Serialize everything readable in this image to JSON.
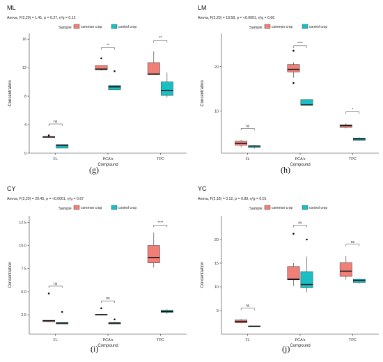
{
  "page": {
    "legend_title": "Sample",
    "legend_items": [
      "common crop",
      "control crop"
    ],
    "colors": {
      "common": "#f07f78",
      "control": "#19bfc2",
      "bracket": "#333333"
    }
  },
  "chart_data": [
    {
      "type": "boxplot",
      "panel_label": "(g)",
      "title": "ML",
      "subtitle": "Anova, F(2,20) = 1.41, p = 0.27, η²g = 0.12",
      "xlabel": "Compound",
      "ylabel": "Concentration",
      "categories": [
        "FL",
        "PCA's",
        "TPC"
      ],
      "ylim": [
        0,
        16.8
      ],
      "yticks": [
        0,
        4,
        8,
        12,
        16
      ],
      "ytick_labels": [
        "0",
        "4",
        "8",
        "12",
        "16"
      ],
      "series": [
        {
          "name": "common crop",
          "boxes": [
            {
              "min": 2.3,
              "q1": 2.3,
              "median": 2.3,
              "q3": 2.3,
              "max": 2.3,
              "outliers": [
                2.5
              ]
            },
            {
              "min": 11.6,
              "q1": 11.7,
              "median": 11.8,
              "q3": 12.3,
              "max": 12.3,
              "outliers": [
                13.3
              ]
            },
            {
              "min": 11.0,
              "q1": 11.0,
              "median": 11.1,
              "q3": 12.7,
              "max": 14.3,
              "outliers": []
            }
          ]
        },
        {
          "name": "control crop",
          "boxes": [
            {
              "min": 0.7,
              "q1": 0.7,
              "median": 1.1,
              "q3": 1.2,
              "max": 1.2,
              "outliers": []
            },
            {
              "min": 8.9,
              "q1": 8.9,
              "median": 9.3,
              "q3": 9.5,
              "max": 9.5,
              "outliers": [
                11.5
              ]
            },
            {
              "min": 7.8,
              "q1": 8.1,
              "median": 8.8,
              "q3": 10.0,
              "max": 11.3,
              "outliers": []
            }
          ]
        }
      ],
      "annotations": [
        {
          "category": "FL",
          "label": "ns",
          "y": 4.1
        },
        {
          "category": "PCA's",
          "label": "**",
          "y": 14.8
        },
        {
          "category": "TPC",
          "label": "**",
          "y": 15.8
        }
      ]
    },
    {
      "type": "boxplot",
      "panel_label": "(h)",
      "title": "LM",
      "subtitle": "Anova, F(2,20) = 19.58, p = <0.0001, η²g = 0.66",
      "xlabel": "Compound",
      "ylabel": "Concentration",
      "categories": [
        "FL",
        "PCA's",
        "TPC"
      ],
      "ylim": [
        0.5,
        27.5
      ],
      "yticks": [
        10,
        20
      ],
      "ytick_labels": [
        "10",
        "20"
      ],
      "series": [
        {
          "name": "common crop",
          "boxes": [
            {
              "min": 1.8,
              "q1": 2.3,
              "median": 2.7,
              "q3": 3.2,
              "max": 3.5,
              "outliers": []
            },
            {
              "min": 17.5,
              "q1": 18.8,
              "median": 19.4,
              "q3": 20.5,
              "max": 21.0,
              "outliers": [
                23.6,
                16.3
              ]
            },
            {
              "min": 6.1,
              "q1": 6.3,
              "median": 6.7,
              "q3": 6.9,
              "max": 7.2,
              "outliers": []
            }
          ]
        },
        {
          "name": "control crop",
          "boxes": [
            {
              "min": 1.5,
              "q1": 1.8,
              "median": 2.1,
              "q3": 2.2,
              "max": 2.3,
              "outliers": []
            },
            {
              "min": 11.3,
              "q1": 11.3,
              "median": 11.4,
              "q3": 12.6,
              "max": 12.6,
              "outliers": []
            },
            {
              "min": 3.3,
              "q1": 3.4,
              "median": 3.7,
              "q3": 3.9,
              "max": 4.1,
              "outliers": []
            }
          ]
        }
      ],
      "annotations": [
        {
          "category": "FL",
          "label": "ns",
          "y": 6.1
        },
        {
          "category": "PCA's",
          "label": "****",
          "y": 24.7
        },
        {
          "category": "TPC",
          "label": "*",
          "y": 9.8
        }
      ]
    },
    {
      "type": "boxplot",
      "panel_label": "(i)",
      "title": "CY",
      "subtitle": "Anova, F(2,20) = 20.45, p = <0.0001, η²g = 0.67",
      "xlabel": "Compound",
      "ylabel": "Concentration",
      "categories": [
        "FL",
        "PCA's",
        "TPC"
      ],
      "ylim": [
        0.4,
        13.2
      ],
      "yticks": [
        2.5,
        5.0,
        7.5,
        10.0,
        12.5
      ],
      "ytick_labels": [
        "2.5",
        "5.0",
        "7.5",
        "10.0",
        "12.5"
      ],
      "series": [
        {
          "name": "common crop",
          "boxes": [
            {
              "min": 1.7,
              "q1": 1.75,
              "median": 1.85,
              "q3": 1.9,
              "max": 1.9,
              "outliers": [
                4.8
              ]
            },
            {
              "min": 2.5,
              "q1": 2.5,
              "median": 2.5,
              "q3": 2.55,
              "max": 2.6,
              "outliers": [
                3.2
              ]
            },
            {
              "min": 7.6,
              "q1": 8.1,
              "median": 8.7,
              "q3": 10.0,
              "max": 11.4,
              "outliers": []
            }
          ]
        },
        {
          "name": "control crop",
          "boxes": [
            {
              "min": 1.5,
              "q1": 1.5,
              "median": 1.6,
              "q3": 1.65,
              "max": 1.7,
              "outliers": [
                2.8
              ]
            },
            {
              "min": 1.5,
              "q1": 1.5,
              "median": 1.6,
              "q3": 1.65,
              "max": 1.7,
              "outliers": [
                2.0
              ]
            },
            {
              "min": 2.6,
              "q1": 2.75,
              "median": 2.85,
              "q3": 3.0,
              "max": 3.1,
              "outliers": []
            }
          ]
        }
      ],
      "annotations": [
        {
          "category": "FL",
          "label": "ns",
          "y": 5.6
        },
        {
          "category": "PCA's",
          "label": "ns",
          "y": 4.0
        },
        {
          "category": "TPC",
          "label": "****",
          "y": 12.2
        }
      ]
    },
    {
      "type": "boxplot",
      "panel_label": "(j)",
      "title": "YC",
      "subtitle": "Anova, F(2,18) = 0.12, p = 0.89, η²g = 0.01",
      "xlabel": "Compound",
      "ylabel": "Concentration",
      "categories": [
        "FL",
        "PCA's",
        "TPC"
      ],
      "ylim": [
        0,
        25
      ],
      "yticks": [
        5,
        10,
        15,
        20
      ],
      "ytick_labels": [
        "5",
        "10",
        "15",
        "20"
      ],
      "series": [
        {
          "name": "common crop",
          "boxes": [
            {
              "min": 2.3,
              "q1": 2.4,
              "median": 2.7,
              "q3": 3.0,
              "max": 3.2,
              "outliers": []
            },
            {
              "min": 10.2,
              "q1": 11.5,
              "median": 11.6,
              "q3": 14.3,
              "max": 15.0,
              "outliers": [
                21.2
              ]
            },
            {
              "min": 11.5,
              "q1": 12.2,
              "median": 13.3,
              "q3": 15.1,
              "max": 16.5,
              "outliers": []
            }
          ]
        },
        {
          "name": "control crop",
          "boxes": [
            {
              "min": 1.6,
              "q1": 1.6,
              "median": 1.7,
              "q3": 1.7,
              "max": 1.7,
              "outliers": []
            },
            {
              "min": 8.8,
              "q1": 9.8,
              "median": 10.5,
              "q3": 13.2,
              "max": 16.4,
              "outliers": [
                20.0
              ]
            },
            {
              "min": 10.7,
              "q1": 10.9,
              "median": 11.3,
              "q3": 11.6,
              "max": 11.7,
              "outliers": []
            }
          ]
        }
      ],
      "annotations": [
        {
          "category": "FL",
          "label": "ns",
          "y": 5.5
        },
        {
          "category": "PCA's",
          "label": "ns",
          "y": 23.0
        },
        {
          "category": "TPC",
          "label": "ns",
          "y": 19.0
        }
      ]
    }
  ]
}
